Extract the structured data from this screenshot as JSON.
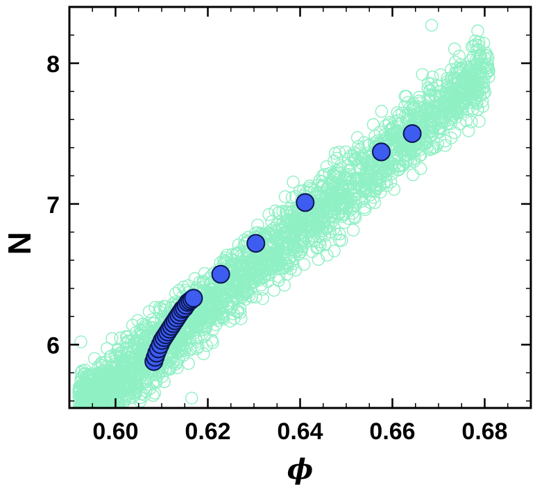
{
  "chart_data": {
    "type": "scatter",
    "xlabel": "ϕ",
    "ylabel": "N",
    "xlim": [
      0.59,
      0.69
    ],
    "ylim": [
      5.55,
      8.4
    ],
    "x_ticks": [
      0.6,
      0.62,
      0.64,
      0.66,
      0.68
    ],
    "x_tick_labels": [
      "0.60",
      "0.62",
      "0.64",
      "0.66",
      "0.68"
    ],
    "y_ticks": [
      6,
      7,
      8
    ],
    "y_tick_labels": [
      "6",
      "7",
      "8"
    ],
    "grid": false,
    "legend": "none",
    "colors": {
      "cloud_stroke": "#8ff0c4",
      "mean_fill": "#3d5cf0",
      "mean_stroke": "#0a1450",
      "frame": "#000000"
    },
    "series": [
      {
        "marker": "open-circle",
        "color": "#8ff0c4",
        "band": {
          "x_from": 0.592,
          "x_to": 0.681,
          "slope": 27.5,
          "anchor": [
            0.608,
            5.95
          ],
          "half_width": 0.22,
          "count": 2600
        },
        "outliers": [
          {
            "x": 0.6685,
            "y": 8.27
          },
          {
            "x": 0.6745,
            "y": 8.05
          },
          {
            "x": 0.6795,
            "y": 7.73
          },
          {
            "x": 0.6785,
            "y": 8.23
          },
          {
            "x": 0.6765,
            "y": 7.52
          },
          {
            "x": 0.6735,
            "y": 7.78
          },
          {
            "x": 0.6665,
            "y": 7.92
          },
          {
            "x": 0.5945,
            "y": 5.66
          },
          {
            "x": 0.5925,
            "y": 6.02
          },
          {
            "x": 0.6165,
            "y": 5.62
          }
        ]
      },
      {
        "marker": "filled-circle",
        "color": "#3d5cf0",
        "x": [
          0.6083,
          0.6086,
          0.6089,
          0.6093,
          0.6097,
          0.6101,
          0.6105,
          0.6109,
          0.6113,
          0.6117,
          0.6121,
          0.6125,
          0.6129,
          0.6133,
          0.6137,
          0.6141,
          0.6145,
          0.6149,
          0.6153,
          0.6157,
          0.6161,
          0.6165,
          0.6169,
          0.6228,
          0.6304,
          0.6411,
          0.6576,
          0.6643
        ],
        "y": [
          5.88,
          5.91,
          5.94,
          5.97,
          6.0,
          6.03,
          6.05,
          6.07,
          6.09,
          6.11,
          6.13,
          6.15,
          6.17,
          6.19,
          6.21,
          6.23,
          6.25,
          6.26,
          6.28,
          6.3,
          6.31,
          6.32,
          6.33,
          6.5,
          6.72,
          7.01,
          7.37,
          7.5
        ]
      }
    ]
  }
}
